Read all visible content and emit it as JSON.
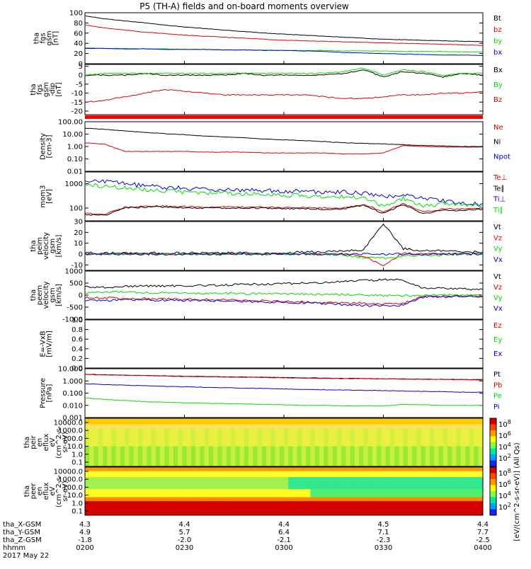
{
  "title": "P5 (TH-A) fields and on-board moments overview",
  "colors": {
    "black": "#000000",
    "red": "#e00000",
    "green": "#00dd00",
    "blue": "#0000e0",
    "magenta": "#e00000"
  },
  "chart_data": [
    {
      "type": "line",
      "id": "fgs-gsm-mag",
      "ylabel": [
        "tha",
        "fgs",
        "gsm",
        "[nT]"
      ],
      "ylim": [
        0,
        100
      ],
      "yticks": [
        0,
        20,
        40,
        60,
        80,
        100
      ],
      "series": [
        {
          "name": "Bt",
          "color": "#000000",
          "y": [
            94,
            88,
            84,
            80,
            76,
            72,
            69,
            66,
            63,
            60,
            58,
            56,
            54,
            52,
            50,
            48,
            47,
            46,
            45,
            44,
            43
          ]
        },
        {
          "name": "bz",
          "color": "#e00000",
          "y": [
            76,
            70,
            66,
            62,
            59,
            56,
            54,
            52,
            50,
            48,
            46,
            45,
            44,
            43,
            42,
            41,
            40,
            39,
            38,
            37,
            36
          ]
        },
        {
          "name": "by",
          "color": "#00dd00",
          "y": [
            31,
            30,
            30,
            29,
            29,
            28,
            28,
            27,
            27,
            27,
            26,
            26,
            26,
            25,
            25,
            25,
            24,
            24,
            24,
            23,
            23
          ]
        },
        {
          "name": "bx",
          "color": "#0000e0",
          "y": [
            30,
            30,
            29,
            29,
            28,
            28,
            28,
            27,
            27,
            26,
            26,
            25,
            24,
            22,
            21,
            20,
            19,
            18,
            17,
            17,
            16
          ]
        }
      ]
    },
    {
      "type": "line",
      "id": "fgs-gsm-comp",
      "ylabel": [
        "tha",
        "fgs",
        "gsm",
        "-dip",
        "[nT]"
      ],
      "ylim": [
        -22,
        6
      ],
      "yticks": [
        5,
        0,
        -5,
        -10,
        -15,
        -20
      ],
      "series": [
        {
          "name": "Bx",
          "color": "#000000",
          "y": [
            0,
            0,
            0,
            1,
            0,
            0,
            0,
            0,
            1,
            0,
            0,
            0,
            0,
            1,
            3,
            -1,
            2,
            1,
            -1,
            1,
            0
          ]
        },
        {
          "name": "By",
          "color": "#00dd00",
          "y": [
            0,
            1,
            1,
            1,
            1,
            1,
            1,
            1,
            1,
            1,
            1,
            1,
            1,
            2,
            4,
            0,
            3,
            2,
            0,
            1,
            1
          ]
        },
        {
          "name": "Bz",
          "color": "#e00000",
          "y": [
            -15,
            -14,
            -12,
            -10,
            -8,
            -9,
            -10,
            -11,
            -11,
            -11,
            -11,
            -11,
            -12,
            -13,
            -13,
            -12,
            -11,
            -11,
            -10,
            -10,
            -9
          ]
        }
      ]
    },
    {
      "type": "line",
      "id": "density",
      "scale": "log",
      "ylabel": [
        "Density",
        "[cm-3]"
      ],
      "ylim": [
        0.01,
        100
      ],
      "yticks": [
        "100.00",
        "10.00",
        "1.00",
        "0.10",
        "0.01"
      ],
      "series": [
        {
          "name": "Ne",
          "color": "#e00000",
          "y": [
            2,
            1.5,
            0.4,
            0.4,
            0.4,
            0.4,
            0.35,
            0.35,
            0.35,
            0.3,
            0.3,
            0.3,
            0.3,
            0.25,
            0.25,
            0.3,
            1.2,
            1.0,
            0.9,
            0.9,
            0.9
          ]
        },
        {
          "name": "Ni",
          "color": "#000000",
          "y": [
            30,
            24,
            18,
            14,
            11,
            9,
            7,
            6,
            5,
            4,
            3.5,
            3,
            2.5,
            2,
            1.8,
            1.6,
            1.4,
            1.2,
            1.1,
            1.0,
            0.95
          ]
        },
        {
          "name": "Npot",
          "color": "#0000e0",
          "y": []
        }
      ]
    },
    {
      "type": "line",
      "id": "temperature",
      "scale": "log",
      "ylabel": [
        "mom3",
        "[eV]"
      ],
      "ylim": [
        30,
        3000
      ],
      "yticks": [
        "1000",
        "100"
      ],
      "series": [
        {
          "name": "Te⊥",
          "color": "#e00000",
          "y": [
            60,
            55,
            110,
            120,
            120,
            115,
            110,
            110,
            110,
            110,
            105,
            105,
            100,
            100,
            140,
            70,
            150,
            70,
            90,
            90,
            100
          ]
        },
        {
          "name": "Te∥",
          "color": "#000000",
          "y": [
            55,
            50,
            100,
            110,
            110,
            105,
            100,
            100,
            100,
            100,
            95,
            95,
            90,
            90,
            130,
            60,
            140,
            60,
            80,
            80,
            90
          ]
        },
        {
          "name": "Ti⊥",
          "color": "#0000e0",
          "y": [
            1400,
            1200,
            1000,
            800,
            700,
            650,
            600,
            550,
            550,
            500,
            500,
            480,
            460,
            450,
            400,
            280,
            350,
            250,
            200,
            150,
            140
          ]
        },
        {
          "name": "Ti∥",
          "color": "#00dd00",
          "y": [
            900,
            800,
            650,
            550,
            500,
            450,
            420,
            400,
            380,
            360,
            340,
            320,
            300,
            300,
            280,
            120,
            250,
            120,
            150,
            140,
            130
          ]
        }
      ]
    },
    {
      "type": "line",
      "id": "peim-velocity",
      "ylabel": [
        "tha",
        "peim",
        "velocity",
        "gsm",
        "[km/s]"
      ],
      "ylim": [
        -15,
        30
      ],
      "yticks": [
        30,
        20,
        10,
        0,
        -10
      ],
      "series": [
        {
          "name": "Vt",
          "color": "#000000",
          "y": [
            1,
            1,
            1,
            1,
            1,
            1,
            1,
            1,
            1,
            1,
            1,
            2,
            2,
            3,
            4,
            28,
            5,
            3,
            3,
            2,
            2
          ]
        },
        {
          "name": "Vz",
          "color": "#e00000",
          "y": [
            0,
            0,
            0,
            0,
            0,
            0,
            0,
            0,
            0,
            0,
            0,
            0,
            0,
            0,
            -2,
            -10,
            1,
            0,
            0,
            0,
            0
          ]
        },
        {
          "name": "Vy",
          "color": "#00dd00",
          "y": [
            0,
            0,
            0,
            0,
            0,
            0,
            0,
            0,
            0,
            0,
            0,
            0,
            0,
            -1,
            -3,
            -4,
            -2,
            -1,
            -1,
            0,
            0
          ]
        },
        {
          "name": "Vx",
          "color": "#0000e0",
          "y": [
            0,
            0,
            0,
            0,
            0,
            0,
            0,
            0,
            0,
            0,
            0,
            0,
            0,
            0,
            0,
            0,
            0,
            0,
            0,
            0,
            0
          ]
        }
      ]
    },
    {
      "type": "line",
      "id": "peem-velocity",
      "ylabel": [
        "tha",
        "peem",
        "velocity",
        "gsm",
        "[km/s]"
      ],
      "ylim": [
        -1000,
        1000
      ],
      "yticks": [
        1000,
        500,
        0,
        -500,
        -1000
      ],
      "series": [
        {
          "name": "Vt",
          "color": "#000000",
          "y": [
            350,
            320,
            360,
            380,
            380,
            390,
            400,
            420,
            440,
            460,
            480,
            500,
            520,
            560,
            600,
            650,
            620,
            300,
            300,
            250,
            250
          ]
        },
        {
          "name": "Vz",
          "color": "#e00000",
          "y": [
            -100,
            -110,
            -150,
            -150,
            -160,
            -170,
            -180,
            -200,
            -220,
            -240,
            -260,
            -280,
            -300,
            -320,
            -340,
            -360,
            -340,
            -50,
            -40,
            -30,
            -30
          ]
        },
        {
          "name": "Vy",
          "color": "#00dd00",
          "y": [
            100,
            100,
            150,
            100,
            100,
            80,
            80,
            80,
            60,
            60,
            50,
            40,
            30,
            20,
            0,
            -20,
            -20,
            0,
            0,
            0,
            0
          ]
        },
        {
          "name": "Vx",
          "color": "#0000e0",
          "y": [
            -200,
            -220,
            -200,
            -200,
            -210,
            -220,
            -230,
            -240,
            -260,
            -280,
            -300,
            -320,
            -350,
            -400,
            -430,
            -450,
            -420,
            -80,
            -60,
            -50,
            -50
          ]
        }
      ]
    },
    {
      "type": "line",
      "id": "efield",
      "ylabel": [
        "E=-VxB",
        "[mV/m]"
      ],
      "ylim": [
        0,
        1.0
      ],
      "yticks": [
        "1.0",
        "0.8",
        "0.6",
        "0.4",
        "0.2",
        "0.0"
      ],
      "series": [
        {
          "name": "Ez",
          "color": "#e00000",
          "y": []
        },
        {
          "name": "Ey",
          "color": "#00dd00",
          "y": []
        },
        {
          "name": "Ex",
          "color": "#0000e0",
          "y": []
        }
      ]
    },
    {
      "type": "line",
      "id": "pressure",
      "scale": "log",
      "ylabel": [
        "Pressure",
        "[nPa]"
      ],
      "ylim": [
        0.001,
        10
      ],
      "yticks": [
        "10.000",
        "1.000",
        "0.100",
        "0.010",
        "0.001"
      ],
      "series": [
        {
          "name": "Pt",
          "color": "#000000",
          "y": [
            3.5,
            3.2,
            3.0,
            2.8,
            2.6,
            2.4,
            2.3,
            2.2,
            2.1,
            2.0,
            1.9,
            1.8,
            1.7,
            1.6,
            1.55,
            1.5,
            1.45,
            1.4,
            1.35,
            1.3,
            1.25
          ]
        },
        {
          "name": "Pb",
          "color": "#e00000",
          "y": [
            3.4,
            3.1,
            2.9,
            2.7,
            2.5,
            2.3,
            2.2,
            2.1,
            2.0,
            1.9,
            1.8,
            1.7,
            1.6,
            1.55,
            1.5,
            1.45,
            1.4,
            1.35,
            1.3,
            1.25,
            1.2
          ]
        },
        {
          "name": "Pe",
          "color": "#00dd00",
          "y": [
            0.04,
            0.03,
            0.025,
            0.02,
            0.018,
            0.016,
            0.015,
            0.014,
            0.013,
            0.012,
            0.011,
            0.01,
            0.01,
            0.009,
            0.009,
            0.009,
            0.012,
            0.011,
            0.01,
            0.01,
            0.01
          ]
        },
        {
          "name": "Pi",
          "color": "#0000e0",
          "y": [
            0.6,
            0.5,
            0.45,
            0.4,
            0.36,
            0.33,
            0.3,
            0.28,
            0.26,
            0.24,
            0.22,
            0.2,
            0.19,
            0.18,
            0.17,
            0.16,
            0.15,
            0.14,
            0.13,
            0.12,
            0.12
          ]
        }
      ]
    },
    {
      "type": "heatmap",
      "id": "peir-spectrogram",
      "ylabel": [
        "tha",
        "peir",
        "en",
        "eflux",
        "eV",
        "(cm^2-s-",
        "sr-eV)"
      ],
      "yticks": [
        "10000.0",
        "1000.0",
        "100.0",
        "10.0",
        "1.0",
        "0.1"
      ],
      "colorbar": {
        "ticks": [
          "10^8",
          "10^6",
          "10^4",
          "10^2"
        ]
      }
    },
    {
      "type": "heatmap",
      "id": "peer-spectrogram",
      "ylabel": [
        "tha",
        "peer",
        "en",
        "eflux",
        "eV",
        "(cm^2-s-",
        "sr-eV)"
      ],
      "yticks": [
        "10000.0",
        "1000.0",
        "100.0",
        "10.0",
        "1.0",
        "0.1"
      ],
      "colorbar": {
        "ticks": [
          "10^8",
          "10^6",
          "10^4",
          "10^2"
        ]
      }
    }
  ],
  "colorbar_label": "[eV/(cm^2-s-sr-eV)] (All Qs)",
  "footer": {
    "rows": [
      {
        "label": "tha_X-GSM",
        "values": [
          "4.3",
          "4.4",
          "4.4",
          "4.5",
          "4.4"
        ]
      },
      {
        "label": "tha_Y-GSM",
        "values": [
          "4.9",
          "5.7",
          "6.4",
          "7.1",
          "7.7"
        ]
      },
      {
        "label": "tha_Z-GSM",
        "values": [
          "-1.8",
          "-2.0",
          "-2.1",
          "-2.3",
          "-2.5"
        ]
      },
      {
        "label": "hhmm",
        "values": [
          "0200",
          "0230",
          "0300",
          "0330",
          "0400"
        ]
      }
    ],
    "date": "2017 May 22"
  }
}
